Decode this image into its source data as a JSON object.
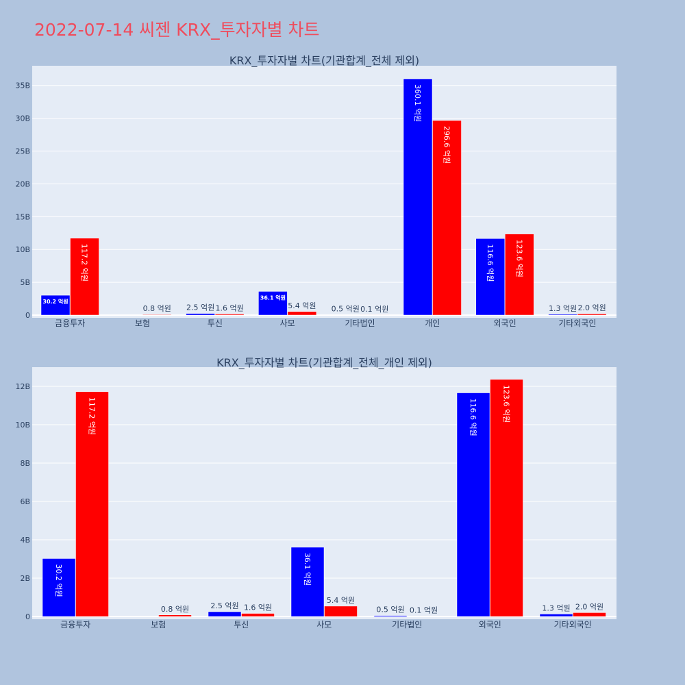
{
  "title": "2022-07-14 씨젠 KRX_투자자별 차트",
  "colors": {
    "series1": "#0000ff",
    "series2": "#ff0000",
    "plot_bg": "#e5ecf6",
    "page_bg": "#b0c4de",
    "title": "#ef4c5c"
  },
  "chart_data": [
    {
      "type": "bar",
      "title": "KRX_투자자별 차트(기관합계_전체 제외)",
      "categories": [
        "금융투자",
        "보험",
        "투신",
        "사모",
        "기타법인",
        "개인",
        "외국인",
        "기타외국인"
      ],
      "series": [
        {
          "values": [
            3020000000,
            0,
            250000000,
            3610000000,
            50000000,
            36010000000,
            11660000000,
            130000000
          ],
          "labels": [
            "30.2 억원",
            "",
            "2.5 억원",
            "36.1 억원",
            "0.5 억원",
            "360.1 억원",
            "116.6 억원",
            "1.3 억원"
          ]
        },
        {
          "values": [
            11720000000,
            80000000,
            160000000,
            540000000,
            10000000,
            29660000000,
            12360000000,
            200000000
          ],
          "labels": [
            "117.2 억원",
            "0.8 억원",
            "1.6 억원",
            "5.4 억원",
            "0.1 억원",
            "296.6 억원",
            "123.6 억원",
            "2.0 억원"
          ]
        }
      ],
      "ylim": [
        0,
        38000000000
      ],
      "yticks": [
        0,
        5000000000,
        10000000000,
        15000000000,
        20000000000,
        25000000000,
        30000000000,
        35000000000
      ],
      "ytick_labels": [
        "0",
        "5B",
        "10B",
        "15B",
        "20B",
        "25B",
        "30B",
        "35B"
      ],
      "grid": true
    },
    {
      "type": "bar",
      "title": "KRX_투자자별 차트(기관합계_전체_개인 제외)",
      "categories": [
        "금융투자",
        "보험",
        "투신",
        "사모",
        "기타법인",
        "외국인",
        "기타외국인"
      ],
      "series": [
        {
          "values": [
            3020000000,
            0,
            250000000,
            3610000000,
            50000000,
            11660000000,
            130000000
          ],
          "labels": [
            "30.2 억원",
            "",
            "2.5 억원",
            "36.1 억원",
            "0.5 억원",
            "116.6 억원",
            "1.3 억원"
          ]
        },
        {
          "values": [
            11720000000,
            80000000,
            160000000,
            540000000,
            10000000,
            12360000000,
            200000000
          ],
          "labels": [
            "117.2 억원",
            "0.8 억원",
            "1.6 억원",
            "5.4 억원",
            "0.1 억원",
            "123.6 억원",
            "2.0 억원"
          ]
        }
      ],
      "ylim": [
        0,
        13000000000
      ],
      "yticks": [
        0,
        2000000000,
        4000000000,
        6000000000,
        8000000000,
        10000000000,
        12000000000
      ],
      "ytick_labels": [
        "0",
        "2B",
        "4B",
        "6B",
        "8B",
        "10B",
        "12B"
      ],
      "grid": true
    }
  ]
}
